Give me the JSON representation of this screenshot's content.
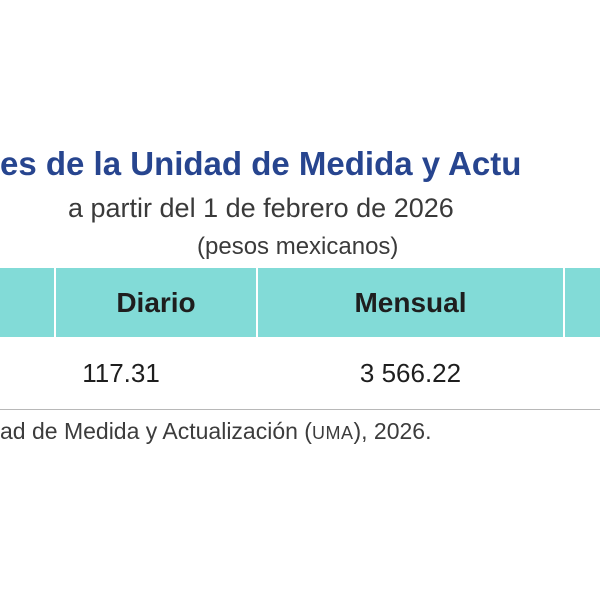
{
  "title": "es de la Unidad de Medida y Actu",
  "subtitle": "a partir del 1 de febrero de 2026",
  "units": "(pesos mexicanos)",
  "table": {
    "headers": [
      "",
      "Diario",
      "Mensual",
      ""
    ],
    "row": {
      "diario": "117.31",
      "mensual": "3 566.22"
    },
    "header_color": "#82dbd7"
  },
  "source": {
    "before": "ad de Medida y Actualización (",
    "abbr": "UMA",
    "after": "), 2026."
  },
  "colors": {
    "title": "#27458f",
    "text": "#1e1e1e"
  }
}
